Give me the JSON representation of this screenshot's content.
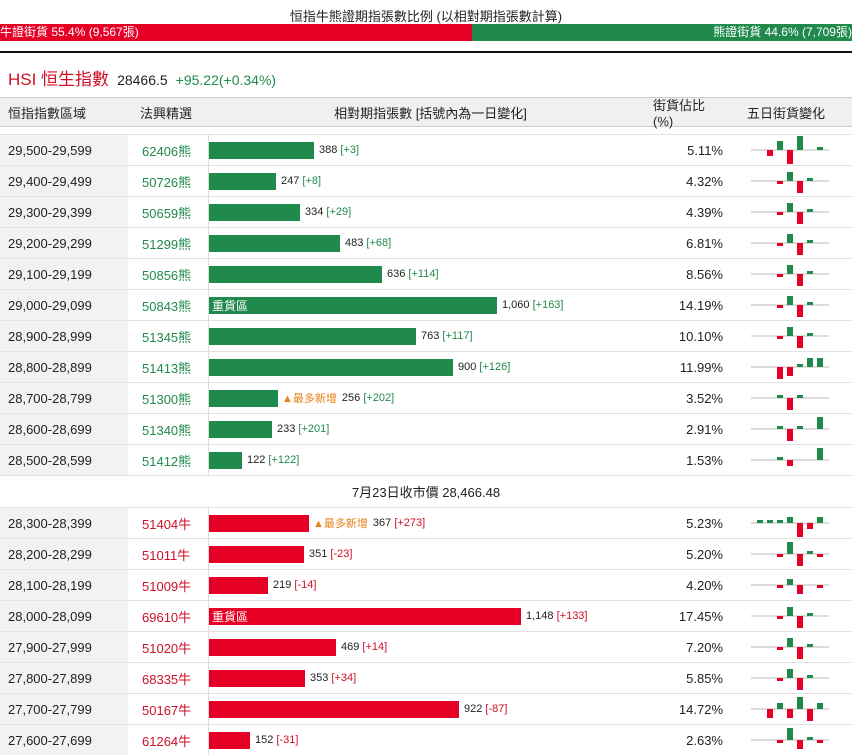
{
  "ratio": {
    "title": "恒指牛熊證期指張數比例 (以相對期指張數計算)",
    "bull_text": "牛證街貨 55.4% (9,567張)",
    "bear_text": "熊證街貨 44.6% (7,709張)",
    "bull_pct": 55.4,
    "bear_pct": 44.6,
    "bull_color": "#e60026",
    "bear_color": "#1f8a4c"
  },
  "hsi": {
    "name": "HSI 恒生指數",
    "price": "28466.5",
    "change": "+95.22(+0.34%)"
  },
  "headers": {
    "range": "恒指指數區域",
    "pick": "法興精選",
    "bars": "相對期指張數 [括號內為一日變化]",
    "share": "街貨佔比(%)",
    "spark": "五日街貨變化"
  },
  "bear_rows": [
    {
      "range": "29,500-29,599",
      "code": "62406熊",
      "value": 388,
      "label": "388",
      "change": "[+3]",
      "share": "5.11%",
      "tag": "",
      "flag": "",
      "spark": [
        0,
        -2,
        3,
        -5,
        6,
        0,
        1
      ]
    },
    {
      "range": "29,400-29,499",
      "code": "50726熊",
      "value": 247,
      "label": "247",
      "change": "[+8]",
      "share": "4.32%",
      "tag": "",
      "flag": "",
      "spark": [
        0,
        0,
        -1,
        3,
        -4,
        1,
        0
      ]
    },
    {
      "range": "29,300-29,399",
      "code": "50659熊",
      "value": 334,
      "label": "334",
      "change": "[+29]",
      "share": "4.39%",
      "tag": "",
      "flag": "",
      "spark": [
        0,
        0,
        -1,
        3,
        -4,
        1,
        0
      ]
    },
    {
      "range": "29,200-29,299",
      "code": "51299熊",
      "value": 483,
      "label": "483",
      "change": "[+68]",
      "share": "6.81%",
      "tag": "",
      "flag": "",
      "spark": [
        0,
        0,
        -1,
        3,
        -4,
        1,
        0
      ]
    },
    {
      "range": "29,100-29,199",
      "code": "50856熊",
      "value": 636,
      "label": "636",
      "change": "[+114]",
      "share": "8.56%",
      "tag": "",
      "flag": "",
      "spark": [
        0,
        0,
        -1,
        3,
        -4,
        1,
        0
      ]
    },
    {
      "range": "29,000-29,099",
      "code": "50843熊",
      "value": 1060,
      "label": "1,060",
      "change": "[+163]",
      "share": "14.19%",
      "tag": "重貨區",
      "flag": "",
      "spark": [
        0,
        0,
        -1,
        3,
        -4,
        1,
        0
      ]
    },
    {
      "range": "28,900-28,999",
      "code": "51345熊",
      "value": 763,
      "label": "763",
      "change": "[+117]",
      "share": "10.10%",
      "tag": "",
      "flag": "",
      "spark": [
        0,
        0,
        -1,
        3,
        -4,
        1,
        0
      ]
    },
    {
      "range": "28,800-28,899",
      "code": "51413熊",
      "value": 900,
      "label": "900",
      "change": "[+126]",
      "share": "11.99%",
      "tag": "",
      "flag": "",
      "spark": [
        0,
        0,
        -4,
        -3,
        1,
        3,
        3
      ]
    },
    {
      "range": "28,700-28,799",
      "code": "51300熊",
      "value": 256,
      "label": "256",
      "change": "[+202]",
      "share": "3.52%",
      "tag": "",
      "flag": "▲最多新增",
      "spark": [
        0,
        0,
        1,
        -4,
        1,
        0,
        0
      ]
    },
    {
      "range": "28,600-28,699",
      "code": "51340熊",
      "value": 233,
      "label": "233",
      "change": "[+201]",
      "share": "2.91%",
      "tag": "",
      "flag": "",
      "spark": [
        0,
        0,
        1,
        -4,
        1,
        0,
        4
      ]
    },
    {
      "range": "28,500-28,599",
      "code": "51412熊",
      "value": 122,
      "label": "122",
      "change": "[+122]",
      "share": "1.53%",
      "tag": "",
      "flag": "",
      "spark": [
        0,
        0,
        1,
        -2,
        0,
        0,
        4
      ]
    }
  ],
  "close_text": "7月23日收市價 28,466.48",
  "bull_rows": [
    {
      "range": "28,300-28,399",
      "code": "51404牛",
      "value": 367,
      "label": "367",
      "change": "[+273]",
      "share": "5.23%",
      "tag": "",
      "flag": "▲最多新增",
      "spark": [
        1,
        1,
        1,
        2,
        -5,
        -2,
        2
      ]
    },
    {
      "range": "28,200-28,299",
      "code": "51011牛",
      "value": 351,
      "label": "351",
      "change": "[-23]",
      "share": "5.20%",
      "tag": "",
      "flag": "",
      "spark": [
        0,
        0,
        -1,
        4,
        -4,
        1,
        -1
      ]
    },
    {
      "range": "28,100-28,199",
      "code": "51009牛",
      "value": 219,
      "label": "219",
      "change": "[-14]",
      "share": "4.20%",
      "tag": "",
      "flag": "",
      "spark": [
        0,
        0,
        -1,
        2,
        -3,
        0,
        -1
      ]
    },
    {
      "range": "28,000-28,099",
      "code": "69610牛",
      "value": 1148,
      "label": "1,148",
      "change": "[+133]",
      "share": "17.45%",
      "tag": "重貨區",
      "flag": "",
      "spark": [
        0,
        0,
        -1,
        3,
        -4,
        1,
        0
      ]
    },
    {
      "range": "27,900-27,999",
      "code": "51020牛",
      "value": 469,
      "label": "469",
      "change": "[+14]",
      "share": "7.20%",
      "tag": "",
      "flag": "",
      "spark": [
        0,
        0,
        -1,
        3,
        -4,
        1,
        0
      ]
    },
    {
      "range": "27,800-27,899",
      "code": "68335牛",
      "value": 353,
      "label": "353",
      "change": "[+34]",
      "share": "5.85%",
      "tag": "",
      "flag": "",
      "spark": [
        0,
        0,
        -1,
        3,
        -4,
        1,
        0
      ]
    },
    {
      "range": "27,700-27,799",
      "code": "50167牛",
      "value": 922,
      "label": "922",
      "change": "[-87]",
      "share": "14.72%",
      "tag": "",
      "flag": "",
      "spark": [
        0,
        -3,
        2,
        -3,
        4,
        -4,
        2
      ]
    },
    {
      "range": "27,600-27,699",
      "code": "61264牛",
      "value": 152,
      "label": "152",
      "change": "[-31]",
      "share": "2.63%",
      "tag": "",
      "flag": "",
      "spark": [
        0,
        0,
        -1,
        4,
        -3,
        1,
        -1
      ]
    }
  ]
}
